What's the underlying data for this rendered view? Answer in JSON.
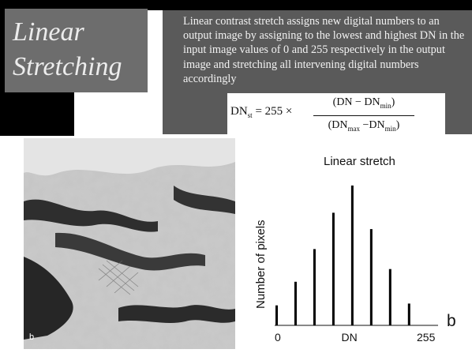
{
  "title": {
    "line1": "Linear",
    "line2": "Stretching"
  },
  "description": "Linear contrast stretch assigns new digital numbers to an output image by assigning to the lowest and highest DN in the input image values of 0 and 255 respectively in the output image and stretching all intervening digital numbers accordingly",
  "formula": {
    "lhs": "DN",
    "lhs_sub": "st",
    "equals_times": "= 255 ×",
    "numerator_main": "(DN − DN",
    "numerator_sub": "min",
    "numerator_close": ")",
    "denominator_main": "(DN",
    "denominator_sub_max": "max",
    "denominator_mid": " −DN",
    "denominator_sub_min": "min",
    "denominator_close": ")"
  },
  "photo": {
    "label": "b"
  },
  "chart_data": {
    "type": "bar",
    "title": "Linear stretch",
    "xlabel": "DN",
    "ylabel": "Number of pixels",
    "panel_letter": "b",
    "x_ticks": [
      "0",
      "DN",
      "255"
    ],
    "x": [
      0,
      32,
      64,
      96,
      128,
      160,
      192,
      224,
      255
    ],
    "values": [
      11,
      24,
      42,
      62,
      77,
      53,
      31,
      12,
      0
    ],
    "xlim": [
      0,
      255
    ],
    "ylim": [
      0,
      80
    ],
    "grid": false
  }
}
